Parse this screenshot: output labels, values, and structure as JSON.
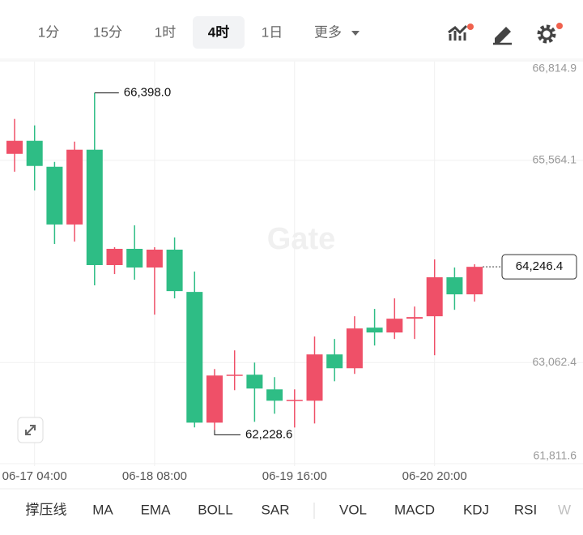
{
  "toolbar": {
    "tabs": [
      "1分",
      "15分",
      "1时",
      "4时",
      "1日",
      "更多"
    ],
    "active": 3,
    "indicators": [
      "撑压线",
      "MA",
      "EMA",
      "BOLL",
      "SAR",
      "VOL",
      "MACD",
      "KDJ",
      "RSI",
      "W"
    ]
  },
  "chart_data": {
    "type": "candlestick",
    "watermark": "Gate",
    "categories": [
      null,
      "06-17 04:00",
      null,
      null,
      null,
      null,
      null,
      "06-18 08:00",
      null,
      null,
      null,
      null,
      null,
      null,
      "06-19 16:00",
      null,
      null,
      null,
      null,
      null,
      null,
      "06-20 20:00",
      null,
      null
    ],
    "open": [
      65644,
      65805,
      65484,
      64770,
      65695,
      64268,
      64469,
      64238,
      64459,
      63936,
      62319,
      62902,
      62912,
      62731,
      62590,
      62590,
      63163,
      62992,
      63494,
      63434,
      63605,
      63635,
      64117,
      63906
    ],
    "high": [
      66076,
      65996,
      65544,
      65795,
      66398,
      64489,
      64760,
      64489,
      64610,
      64188,
      62982,
      63213,
      63062,
      62882,
      62731,
      63384,
      63354,
      63635,
      63726,
      63856,
      63755,
      64338,
      64238,
      64278
    ],
    "low": [
      65423,
      65192,
      64529,
      64559,
      64017,
      64157,
      64087,
      63655,
      63856,
      62260,
      62228.6,
      62721,
      62329,
      62429,
      62259,
      62309,
      62831,
      62922,
      63273,
      63354,
      63354,
      63153,
      63715,
      63816
    ],
    "close": [
      65805,
      65494,
      64770,
      65695,
      64268,
      64469,
      64238,
      64459,
      63946,
      62319,
      62902,
      62912,
      62741,
      62590,
      62600,
      63163,
      62992,
      63484,
      63434,
      63605,
      63625,
      64117,
      63906,
      64246.4
    ],
    "up_color": "#ef5068",
    "down_color": "#2ebd85",
    "ylim": [
      61811.6,
      66814.9
    ],
    "yticks": [
      {
        "value": 61811.6,
        "label": "61,811.6"
      },
      {
        "value": 63062.4,
        "label": "63,062.4"
      },
      {
        "value": 65564.1,
        "label": "65,564.1"
      },
      {
        "value": 66814.9,
        "label": "66,814.9"
      }
    ],
    "grid": true,
    "high_label": "66,398.0",
    "low_label": "62,228.6",
    "last_label": "64,246.4"
  }
}
